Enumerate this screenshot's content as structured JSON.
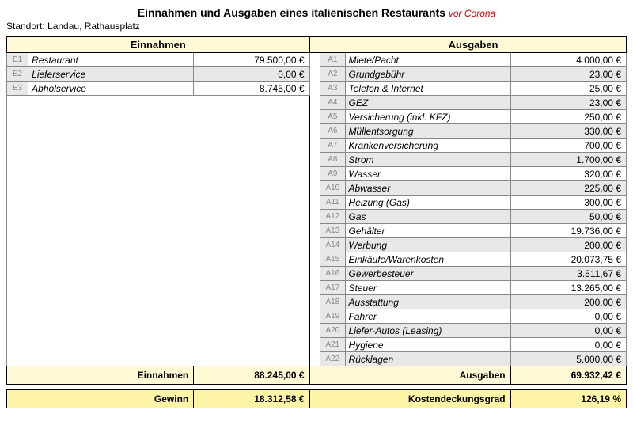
{
  "title_main": "Einnahmen und Ausgaben eines italienischen Restaurants",
  "title_note": "vor Corona",
  "location": "Standort: Landau, Rathausplatz",
  "einnahmen_header": "Einnahmen",
  "ausgaben_header": "Ausgaben",
  "einnahmen": [
    {
      "code": "E1",
      "label": "Restaurant",
      "value": "79.500,00 €"
    },
    {
      "code": "E2",
      "label": "Lieferservice",
      "value": "0,00 €"
    },
    {
      "code": "E3",
      "label": "Abholservice",
      "value": "8.745,00 €"
    }
  ],
  "ausgaben": [
    {
      "code": "A1",
      "label": "Miete/Pacht",
      "value": "4.000,00 €"
    },
    {
      "code": "A2",
      "label": "Grundgebühr",
      "value": "23,00 €"
    },
    {
      "code": "A3",
      "label": "Telefon & Internet",
      "value": "25,00 €"
    },
    {
      "code": "A4",
      "label": "GEZ",
      "value": "23,00 €"
    },
    {
      "code": "A5",
      "label": "Versicherung (inkl. KFZ)",
      "value": "250,00 €"
    },
    {
      "code": "A6",
      "label": "Müllentsorgung",
      "value": "330,00 €"
    },
    {
      "code": "A7",
      "label": "Krankenversicherung",
      "value": "700,00 €"
    },
    {
      "code": "A8",
      "label": "Strom",
      "value": "1.700,00 €"
    },
    {
      "code": "A9",
      "label": "Wasser",
      "value": "320,00 €"
    },
    {
      "code": "A10",
      "label": "Abwasser",
      "value": "225,00 €"
    },
    {
      "code": "A11",
      "label": "Heizung (Gas)",
      "value": "300,00 €"
    },
    {
      "code": "A12",
      "label": "Gas",
      "value": "50,00 €"
    },
    {
      "code": "A13",
      "label": "Gehälter",
      "value": "19.736,00 €"
    },
    {
      "code": "A14",
      "label": "Werbung",
      "value": "200,00 €"
    },
    {
      "code": "A15",
      "label": "Einkäufe/Warenkosten",
      "value": "20.073,75 €"
    },
    {
      "code": "A16",
      "label": "Gewerbesteuer",
      "value": "3.511,67 €"
    },
    {
      "code": "A17",
      "label": "Steuer",
      "value": "13.265,00 €"
    },
    {
      "code": "A18",
      "label": "Ausstattung",
      "value": "200,00 €"
    },
    {
      "code": "A19",
      "label": "Fahrer",
      "value": "0,00 €"
    },
    {
      "code": "A20",
      "label": "Liefer-Autos (Leasing)",
      "value": "0,00 €"
    },
    {
      "code": "A21",
      "label": "Hygiene",
      "value": "0,00 €"
    },
    {
      "code": "A22",
      "label": "Rücklagen",
      "value": "5.000,00 €"
    }
  ],
  "summary": {
    "einnahmen_label": "Einnahmen",
    "einnahmen_total": "88.245,00 €",
    "ausgaben_label": "Ausgaben",
    "ausgaben_total": "69.932,42 €",
    "gewinn_label": "Gewinn",
    "gewinn_value": "18.312,58 €",
    "kdg_label": "Kostendeckungsgrad",
    "kdg_value": "126,19 %"
  },
  "style": {
    "header_bg": "#fff9d6",
    "alt_bg": "#e8e8e8",
    "gewinn_bg": "#fff5a6",
    "note_color": "#d00000"
  }
}
